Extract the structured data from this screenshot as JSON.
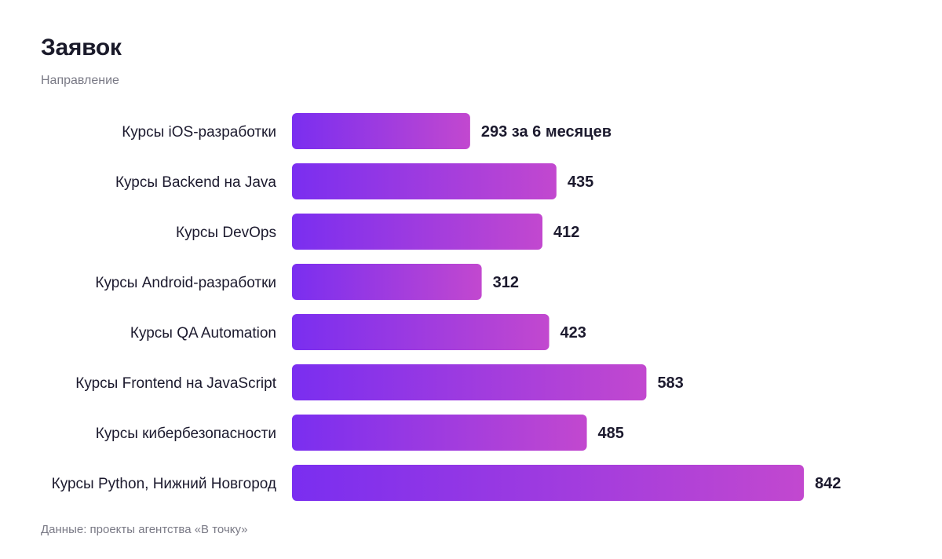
{
  "header": {
    "title": "Заявок",
    "subtitle": "Направление"
  },
  "footer": {
    "source": "Данные: проекты агентства «В точку»"
  },
  "colors": {
    "bar_start": "#7a2ef0",
    "bar_end": "#c248cf",
    "text": "#1c1a2e",
    "muted": "#7a7a86"
  },
  "chart_data": {
    "type": "bar",
    "orientation": "horizontal",
    "title": "Заявок",
    "subtitle": "Направление",
    "categories": [
      "Курсы iOS-разработки",
      "Курсы Backend на Java",
      "Курсы DevOps",
      "Курсы Android-разработки",
      "Курсы QA Automation",
      "Курсы Frontend на JavaScript",
      "Курсы кибербезопасности",
      "Курсы Python, Нижний Новгород"
    ],
    "values": [
      293,
      435,
      412,
      312,
      423,
      583,
      485,
      842
    ],
    "value_labels": [
      "293 за 6 месяцев",
      "435",
      "412",
      "312",
      "423",
      "583",
      "485",
      "842"
    ],
    "xlim": [
      0,
      842
    ],
    "grid": false,
    "legend": "none"
  }
}
